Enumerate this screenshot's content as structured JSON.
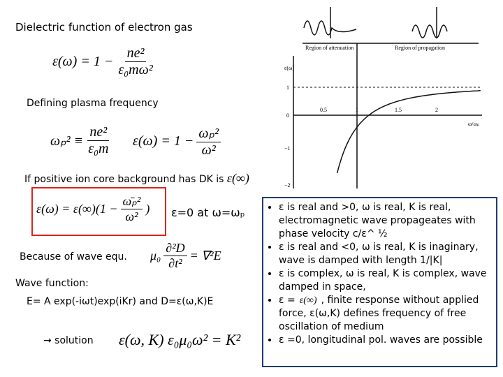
{
  "title": "Dielectric function of electron gas",
  "eq_dielectric": {
    "lhs": "ε(ω) = 1 −",
    "num": "ne²",
    "den": "ε₀mω²"
  },
  "plasma_label": "Defining plasma frequency",
  "eq_plasma": {
    "lhs": "ωₚ² ≡",
    "num": "ne²",
    "den": "ε₀m"
  },
  "eq_dielectric_p": {
    "lhs": "ε(ω) = 1 −",
    "num": "ωₚ²",
    "den": "ω²"
  },
  "core_label": "If positive ion core background has DK is",
  "core_eq": "ε(∞)",
  "eq_boxed": {
    "lhs": "ε(ω) = ε(∞)(1 −",
    "num": "ω̄ₚ²",
    "den": "ω²",
    "rhs": ")"
  },
  "zero_note": "ε=0 at ω=ωₚ",
  "wave_label": "Because of wave equ.",
  "eq_wave": {
    "lhs": "μ₀",
    "num": "∂²D",
    "den": "∂t²",
    "rhs": "= ∇²E"
  },
  "wavefn_label": "Wave function:",
  "wavefn": "E= A exp(-iωt)exp(iKr)   and D=ε(ω,K)E",
  "solution_label": "→   solution",
  "eq_solution": "ε(ω, K) ε₀μ₀ω² = K²",
  "figure": {
    "region_attenuation": "Region of attenuation",
    "region_propagation": "Region of propagation",
    "y_label": "ε(ω)",
    "x_label": "ω/ωₚ",
    "yticks": [
      "1",
      "0",
      "−1",
      "−2"
    ],
    "xticks": [
      "0.5",
      "1",
      "1.5",
      "2"
    ]
  },
  "bullets": [
    {
      "text": "ε is real and >0, ω is real, K is real, electromagnetic wave propageates with phase velocity c/ε^ ½"
    },
    {
      "text": "ε is real and <0, ω is real, K is inaginary, wave is damped with length 1/|K|"
    },
    {
      "text": "ε is complex, ω is real, K is complex, wave damped in space,"
    },
    {
      "prefix": "ε =",
      "eq": "ε(∞)",
      "text": ", finite response without applied force, ε(ω,K) defines frequency of free oscillation of medium"
    },
    {
      "text": "ε =0, longitudinal pol. waves are possible"
    }
  ]
}
